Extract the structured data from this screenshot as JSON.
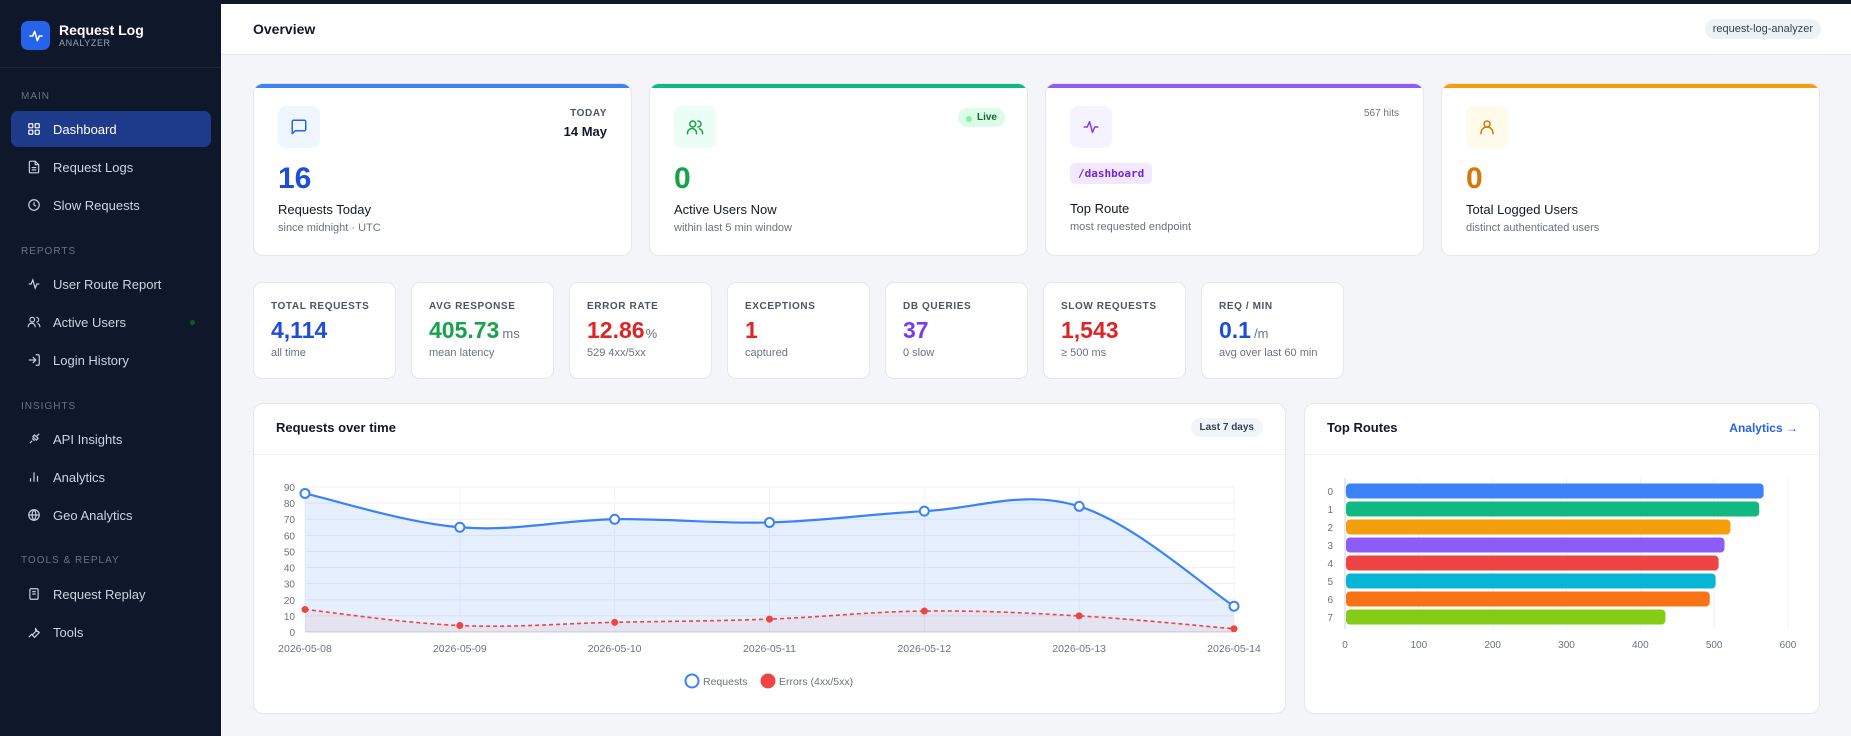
{
  "brand": {
    "title": "Request Log",
    "subtitle": "ANALYZER"
  },
  "sidebar": {
    "sections": [
      "MAIN",
      "REPORTS",
      "INSIGHTS",
      "TOOLS & REPLAY"
    ],
    "items": [
      {
        "label": "Dashboard",
        "icon": "grid-icon"
      },
      {
        "label": "Request Logs",
        "icon": "file-icon"
      },
      {
        "label": "Slow Requests",
        "icon": "clock-icon"
      },
      {
        "label": "User Route Report",
        "icon": "activity-icon"
      },
      {
        "label": "Active Users",
        "icon": "users-icon"
      },
      {
        "label": "Login History",
        "icon": "login-icon"
      },
      {
        "label": "API Insights",
        "icon": "api-icon"
      },
      {
        "label": "Analytics",
        "icon": "bar-chart-icon"
      },
      {
        "label": "Geo Analytics",
        "icon": "globe-icon"
      },
      {
        "label": "Request Replay",
        "icon": "replay-icon"
      },
      {
        "label": "Tools",
        "icon": "wrench-icon"
      }
    ]
  },
  "header": {
    "title": "Overview",
    "app_pill": "request-log-analyzer"
  },
  "cards": [
    {
      "value": "16",
      "label": "Requests Today",
      "sub": "since midnight · UTC",
      "right_top": "TODAY",
      "right_bottom": "14 May",
      "color": "#1d4ed8",
      "bar": "#3b82f6"
    },
    {
      "value": "0",
      "label": "Active Users Now",
      "sub": "within last 5 min window",
      "badge": "Live",
      "color": "#16a34a",
      "bar": "#10b981"
    },
    {
      "route": "/dashboard",
      "label": "Top Route",
      "sub": "most requested endpoint",
      "hits": "567 hits",
      "color": "#7c3aed",
      "bar": "#8b5cf6"
    },
    {
      "value": "0",
      "label": "Total Logged Users",
      "sub": "distinct authenticated users",
      "color": "#d97706",
      "bar": "#f59e0b"
    }
  ],
  "stats": [
    {
      "label": "TOTAL REQUESTS",
      "value": "4,114",
      "unit": "",
      "sub": "all time",
      "color": "#1d4ed8"
    },
    {
      "label": "AVG RESPONSE",
      "value": "405.73",
      "unit": "ms",
      "sub": "mean latency",
      "color": "#16a34a"
    },
    {
      "label": "ERROR RATE",
      "value": "12.86",
      "unit": "%",
      "sub": "529 4xx/5xx",
      "color": "#dc2626"
    },
    {
      "label": "EXCEPTIONS",
      "value": "1",
      "unit": "",
      "sub": "captured",
      "color": "#dc2626"
    },
    {
      "label": "DB QUERIES",
      "value": "37",
      "unit": "",
      "sub": "0 slow",
      "color": "#7c3aed"
    },
    {
      "label": "SLOW REQUESTS",
      "value": "1,543",
      "unit": "",
      "sub": "≥ 500 ms",
      "color": "#dc2626"
    },
    {
      "label": "REQ / MIN",
      "value": "0.1",
      "unit": "/m",
      "sub": "avg over last 60 min",
      "color": "#1d4ed8"
    }
  ],
  "requests_panel": {
    "title": "Requests over time",
    "badge": "Last 7 days"
  },
  "routes_panel": {
    "title": "Top Routes",
    "link": "Analytics →"
  },
  "chart_data": [
    {
      "type": "line",
      "x": [
        "2026-05-08",
        "2026-05-09",
        "2026-05-10",
        "2026-05-11",
        "2026-05-12",
        "2026-05-13",
        "2026-05-14"
      ],
      "series": [
        {
          "name": "Requests",
          "values": [
            86,
            65,
            70,
            68,
            75,
            78,
            16
          ],
          "color": "#3b82f6"
        },
        {
          "name": "Errors (4xx/5xx)",
          "values": [
            14,
            4,
            6,
            8,
            13,
            10,
            2
          ],
          "color": "#ef4444"
        }
      ],
      "ylim": [
        0,
        90
      ],
      "yticks": [
        0,
        10,
        20,
        30,
        40,
        50,
        60,
        70,
        80,
        90
      ],
      "grid": true,
      "legend": "bottom"
    },
    {
      "type": "bar",
      "orientation": "horizontal",
      "categories": [
        "0",
        "1",
        "2",
        "3",
        "4",
        "5",
        "6",
        "7"
      ],
      "values": [
        567,
        561,
        522,
        514,
        506,
        502,
        494,
        434
      ],
      "colors": [
        "#3b82f6",
        "#10b981",
        "#f59e0b",
        "#8b5cf6",
        "#ef4444",
        "#06b6d4",
        "#f97316",
        "#84cc16"
      ],
      "xlim": [
        0,
        600
      ],
      "xticks": [
        0,
        100,
        200,
        300,
        400,
        500,
        600
      ],
      "grid": true
    }
  ]
}
